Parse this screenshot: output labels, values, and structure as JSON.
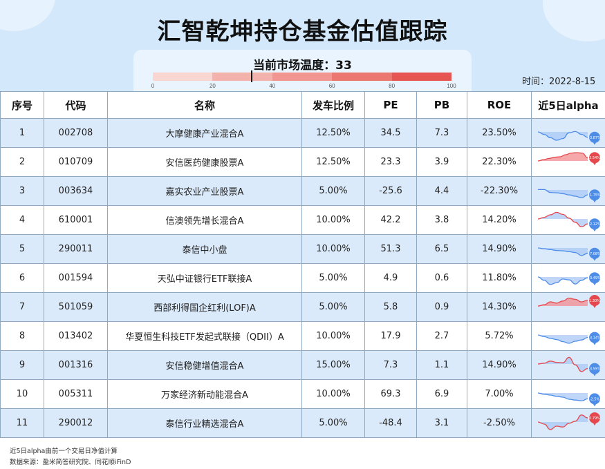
{
  "title": "汇智乾坤持仓基金估值跟踪",
  "temperature": {
    "label": "当前市场温度：33",
    "value": 33,
    "ticks": [
      "0",
      "20",
      "40",
      "60",
      "80",
      "100"
    ],
    "colors": [
      "#f9d6d2",
      "#f4b2ad",
      "#f19690",
      "#ec7670",
      "#e65552"
    ]
  },
  "date": "时间：2022-8-15",
  "columns": [
    "序号",
    "代码",
    "名称",
    "发车比例",
    "PE",
    "PB",
    "ROE",
    "近5日alpha"
  ],
  "rows": [
    {
      "no": "1",
      "code": "002708",
      "name": "大摩健康产业混合A",
      "ratio": "12.50%",
      "pe": "34.5",
      "pb": "7.3",
      "roe": "23.50%",
      "alpha": "-3.87%",
      "trend": "down",
      "spark": [
        0,
        -0.3,
        -0.7,
        -1,
        -0.8,
        -0.1,
        0.05,
        -0.3,
        -0.65
      ]
    },
    {
      "no": "2",
      "code": "010709",
      "name": "安信医药健康股票A",
      "ratio": "12.50%",
      "pe": "23.3",
      "pb": "3.9",
      "roe": "22.30%",
      "alpha": "3.54%",
      "trend": "up",
      "spark": [
        0,
        0.15,
        0.3,
        0.45,
        0.5,
        0.75,
        0.95,
        1,
        0.95,
        0.4
      ]
    },
    {
      "no": "3",
      "code": "003634",
      "name": "嘉实农业产业股票A",
      "ratio": "5.00%",
      "pe": "-25.6",
      "pb": "4.4",
      "roe": "-22.30%",
      "alpha": "-1.75%",
      "trend": "down",
      "spark": [
        0.05,
        0.05,
        -0.3,
        -0.35,
        -0.45,
        -0.6,
        -0.75,
        -0.95,
        -0.6
      ]
    },
    {
      "no": "4",
      "code": "610001",
      "name": "信澳领先增长混合A",
      "ratio": "10.00%",
      "pe": "42.2",
      "pb": "3.8",
      "roe": "14.20%",
      "alpha": "-2.12%",
      "trend": "mixed",
      "spark": [
        0,
        0.2,
        0.5,
        0.8,
        0.55,
        0.1,
        -0.4,
        -0.95,
        -0.6
      ]
    },
    {
      "no": "5",
      "code": "290011",
      "name": "泰信中小盘",
      "ratio": "10.00%",
      "pe": "51.3",
      "pb": "6.5",
      "roe": "14.90%",
      "alpha": "-7.08%",
      "trend": "down",
      "spark": [
        0,
        -0.1,
        -0.2,
        -0.3,
        -0.35,
        -0.45,
        -0.55,
        -0.9,
        -0.65
      ]
    },
    {
      "no": "6",
      "code": "001594",
      "name": "天弘中证银行ETF联接A",
      "ratio": "5.00%",
      "pe": "4.9",
      "pb": "0.6",
      "roe": "11.80%",
      "alpha": "-3.49%",
      "trend": "down",
      "spark": [
        0,
        -0.4,
        -0.9,
        -0.7,
        -0.25,
        -0.35,
        -0.85,
        -0.4,
        -0.1
      ]
    },
    {
      "no": "7",
      "code": "501059",
      "name": "西部利得国企红利(LOF)A",
      "ratio": "5.00%",
      "pe": "5.8",
      "pb": "0.9",
      "roe": "14.30%",
      "alpha": "1.30%",
      "trend": "up",
      "spark": [
        0,
        0.15,
        0.5,
        0.35,
        0.6,
        0.95,
        0.8,
        0.5,
        0.7
      ]
    },
    {
      "no": "8",
      "code": "013402",
      "name": "华夏恒生科技ETF发起式联接（QDII）A",
      "ratio": "10.00%",
      "pe": "17.9",
      "pb": "2.7",
      "roe": "5.72%",
      "alpha": "-3.14%",
      "trend": "down",
      "spark": [
        0,
        -0.2,
        -0.4,
        -0.55,
        -0.8,
        -1,
        -0.75,
        -0.6,
        -0.3
      ]
    },
    {
      "no": "9",
      "code": "001316",
      "name": "安信稳健增值混合A",
      "ratio": "15.00%",
      "pe": "7.3",
      "pb": "1.1",
      "roe": "14.90%",
      "alpha": "-3.55%",
      "trend": "mixed",
      "spark": [
        0,
        0.1,
        0.35,
        0.2,
        0.15,
        0.8,
        -0.1,
        -0.9,
        -0.55
      ]
    },
    {
      "no": "10",
      "code": "005311",
      "name": "万家经济新动能混合A",
      "ratio": "10.00%",
      "pe": "69.3",
      "pb": "6.9",
      "roe": "7.00%",
      "alpha": "-2.5%",
      "trend": "down",
      "spark": [
        0,
        -0.15,
        -0.25,
        -0.4,
        -0.5,
        -0.75,
        -0.85,
        -0.95,
        -0.7
      ]
    },
    {
      "no": "11",
      "code": "290012",
      "name": "泰信行业精选混合A",
      "ratio": "5.00%",
      "pe": "-48.4",
      "pb": "3.1",
      "roe": "-2.50%",
      "alpha": "0.79%",
      "trend": "mixed",
      "spark": [
        0,
        -0.25,
        -0.9,
        -0.5,
        -0.6,
        -0.15,
        0.1,
        0.85,
        0.5
      ]
    }
  ],
  "spark_colors": {
    "down": "#4d8de8",
    "down_fill": "#a9c8f5",
    "up": "#e5484d",
    "up_fill": "#f28c8f"
  },
  "footer": {
    "note": "近5日alpha由前一个交易日净值计算",
    "source": "数据来源：盈米简答研究院、同花顺iFinD"
  }
}
